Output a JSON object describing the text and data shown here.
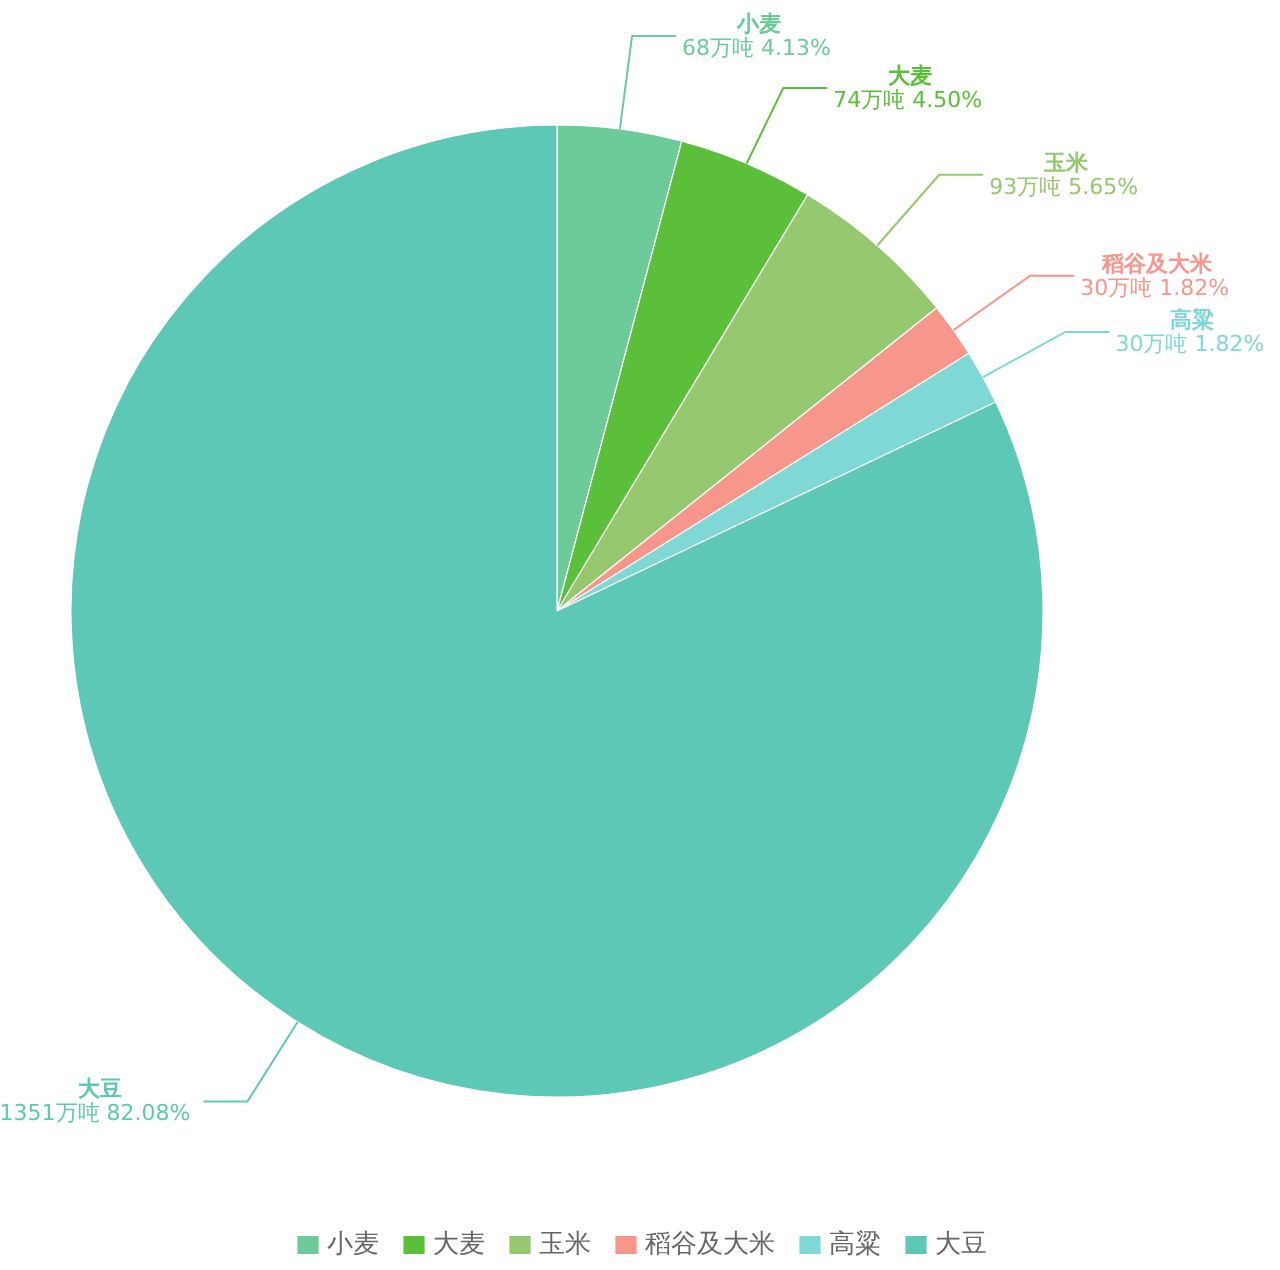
{
  "chart_data": {
    "type": "pie",
    "categories": [
      "小麦",
      "大麦",
      "玉米",
      "稻谷及大米",
      "高粱",
      "大豆"
    ],
    "values": [
      68,
      74,
      93,
      30,
      30,
      1351
    ],
    "colors": [
      "#6ccb98",
      "#5bbf3a",
      "#95c86f",
      "#f7968a",
      "#7fd8d6",
      "#5ec8b6"
    ],
    "value_labels": [
      "68万吨  4.13%",
      "74万吨  4.50%",
      "93万吨  5.65%",
      "30万吨  1.82%",
      "30万吨  1.82%",
      "1351万吨  82.08%"
    ],
    "legend": "bottom"
  }
}
